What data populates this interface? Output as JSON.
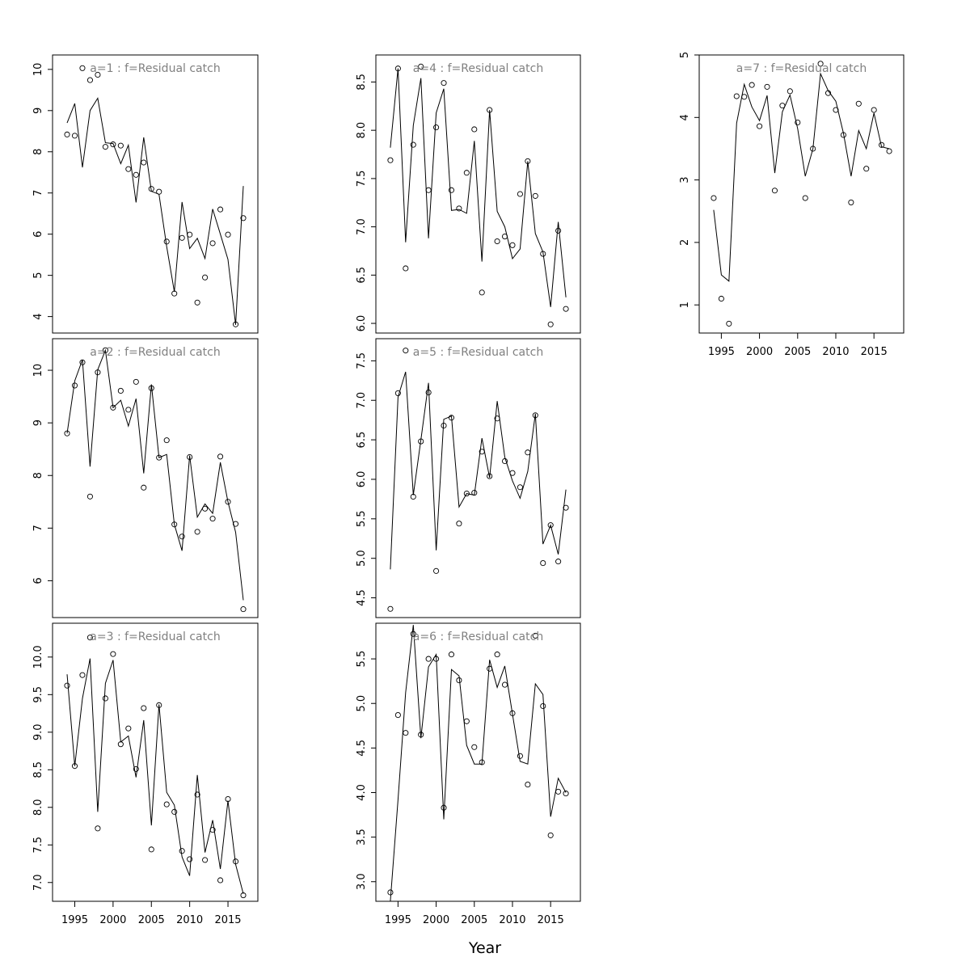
{
  "figure": {
    "xlabel": "Year"
  },
  "chart_data": [
    {
      "type": "line",
      "title": "a=1  :  f=Residual catch",
      "x": [
        1994,
        1995,
        1996,
        1997,
        1998,
        1999,
        2000,
        2001,
        2002,
        2003,
        2004,
        2005,
        2006,
        2007,
        2008,
        2009,
        2010,
        2011,
        2012,
        2013,
        2014,
        2015,
        2016,
        2017
      ],
      "observed": [
        8.42,
        8.39,
        10.03,
        9.74,
        9.87,
        8.12,
        8.18,
        8.15,
        7.58,
        7.44,
        7.74,
        7.1,
        7.03,
        5.82,
        4.56,
        5.91,
        5.99,
        4.34,
        4.95,
        5.78,
        6.6,
        5.99,
        3.81,
        6.39
      ],
      "fitted": [
        8.7,
        9.17,
        7.62,
        9.0,
        9.3,
        8.22,
        8.2,
        7.71,
        8.16,
        6.77,
        8.35,
        7.04,
        6.97,
        5.7,
        4.6,
        6.78,
        5.65,
        5.9,
        5.41,
        6.61,
        6.0,
        5.39,
        3.8,
        7.17
      ],
      "ylim": [
        3.6,
        10.35
      ],
      "yticks": [
        "4",
        "5",
        "6",
        "7",
        "8",
        "9",
        "10"
      ],
      "xticks": [],
      "xlim": [
        1992.1,
        2018.9
      ],
      "series": [
        {
          "values_key": "observed",
          "style": "points"
        },
        {
          "values_key": "fitted",
          "style": "line"
        }
      ]
    },
    {
      "type": "line",
      "title": "a=2  :  f=Residual catch",
      "x": [
        1994,
        1995,
        1996,
        1997,
        1998,
        1999,
        2000,
        2001,
        2002,
        2003,
        2004,
        2005,
        2006,
        2007,
        2008,
        2009,
        2010,
        2011,
        2012,
        2013,
        2014,
        2015,
        2016,
        2017
      ],
      "observed": [
        8.8,
        9.71,
        10.15,
        7.6,
        9.96,
        10.38,
        9.29,
        9.61,
        9.25,
        9.78,
        7.77,
        9.66,
        8.34,
        8.67,
        7.07,
        6.84,
        8.35,
        6.93,
        7.37,
        7.18,
        8.36,
        7.5,
        7.08,
        5.46
      ],
      "fitted": [
        8.8,
        9.8,
        10.2,
        8.17,
        10.01,
        10.38,
        9.29,
        9.43,
        8.94,
        9.46,
        8.04,
        9.73,
        8.34,
        8.4,
        7.07,
        6.57,
        8.38,
        7.21,
        7.46,
        7.28,
        8.25,
        7.5,
        6.92,
        5.63
      ],
      "ylim": [
        5.3,
        10.6
      ],
      "yticks": [
        "6",
        "7",
        "8",
        "9",
        "10"
      ],
      "xticks": [],
      "xlim": [
        1992.1,
        2018.9
      ]
    },
    {
      "type": "line",
      "title": "a=3  :  f=Residual catch",
      "x": [
        1994,
        1995,
        1996,
        1997,
        1998,
        1999,
        2000,
        2001,
        2002,
        2003,
        2004,
        2005,
        2006,
        2007,
        2008,
        2009,
        2010,
        2011,
        2012,
        2013,
        2014,
        2015,
        2016,
        2017
      ],
      "observed": [
        9.62,
        8.55,
        9.76,
        10.26,
        7.72,
        9.45,
        10.04,
        8.84,
        9.05,
        8.51,
        9.32,
        7.44,
        9.36,
        8.04,
        7.94,
        7.42,
        7.31,
        8.17,
        7.3,
        7.7,
        7.03,
        8.11,
        7.28,
        6.83
      ],
      "fitted": [
        9.77,
        8.55,
        9.45,
        9.98,
        7.94,
        9.65,
        9.96,
        8.87,
        8.95,
        8.4,
        9.16,
        7.76,
        9.37,
        8.2,
        8.03,
        7.34,
        7.09,
        8.43,
        7.4,
        7.83,
        7.18,
        8.09,
        7.24,
        6.85
      ],
      "ylim": [
        6.75,
        10.45
      ],
      "yticks": [
        "7.0",
        "7.5",
        "8.0",
        "8.5",
        "9.0",
        "9.5",
        "10.0"
      ],
      "xticks": [
        "1995",
        "2000",
        "2005",
        "2010",
        "2015"
      ],
      "xlim": [
        1992.1,
        2018.9
      ]
    },
    {
      "type": "line",
      "title": "a=4  :  f=Residual catch",
      "x": [
        1994,
        1995,
        1996,
        1997,
        1998,
        1999,
        2000,
        2001,
        2002,
        2003,
        2004,
        2005,
        2006,
        2007,
        2008,
        2009,
        2010,
        2011,
        2012,
        2013,
        2014,
        2015,
        2016,
        2017
      ],
      "observed": [
        7.69,
        8.64,
        6.57,
        7.85,
        8.66,
        7.38,
        8.03,
        8.49,
        7.38,
        7.19,
        7.56,
        8.01,
        6.32,
        8.21,
        6.85,
        6.9,
        6.81,
        7.34,
        7.68,
        7.32,
        6.72,
        5.99,
        6.96,
        6.15
      ],
      "fitted": [
        7.82,
        8.64,
        6.84,
        8.05,
        8.54,
        6.88,
        8.18,
        8.43,
        7.17,
        7.18,
        7.14,
        7.89,
        6.64,
        8.21,
        7.16,
        7.0,
        6.67,
        6.77,
        7.68,
        6.93,
        6.74,
        6.17,
        7.05,
        6.27
      ],
      "ylim": [
        5.9,
        8.78
      ],
      "yticks": [
        "6.0",
        "6.5",
        "7.0",
        "7.5",
        "8.0",
        "8.5"
      ],
      "xticks": [],
      "xlim": [
        1992.1,
        2018.9
      ]
    },
    {
      "type": "line",
      "title": "a=5  :  f=Residual catch",
      "x": [
        1994,
        1995,
        1996,
        1997,
        1998,
        1999,
        2000,
        2001,
        2002,
        2003,
        2004,
        2005,
        2006,
        2007,
        2008,
        2009,
        2010,
        2011,
        2012,
        2013,
        2014,
        2015,
        2016,
        2017
      ],
      "observed": [
        4.36,
        7.09,
        7.63,
        5.78,
        6.48,
        7.1,
        4.84,
        6.68,
        6.78,
        5.44,
        5.82,
        5.83,
        6.35,
        6.04,
        6.77,
        6.23,
        6.08,
        5.9,
        6.34,
        6.81,
        4.94,
        5.42,
        4.96,
        5.64
      ],
      "fitted": [
        4.86,
        7.04,
        7.36,
        5.8,
        6.5,
        7.22,
        5.1,
        6.76,
        6.8,
        5.65,
        5.82,
        5.8,
        6.52,
        6.02,
        6.99,
        6.28,
        5.98,
        5.76,
        6.1,
        6.83,
        5.18,
        5.42,
        5.05,
        5.87
      ],
      "ylim": [
        4.25,
        7.78
      ],
      "yticks": [
        "4.5",
        "5.0",
        "5.5",
        "6.0",
        "6.5",
        "7.0",
        "7.5"
      ],
      "xticks": [],
      "xlim": [
        1992.1,
        2018.9
      ]
    },
    {
      "type": "line",
      "title": "a=6  :  f=Residual catch",
      "x": [
        1994,
        1995,
        1996,
        1997,
        1998,
        1999,
        2000,
        2001,
        2002,
        2003,
        2004,
        2005,
        2006,
        2007,
        2008,
        2009,
        2010,
        2011,
        2012,
        2013,
        2014,
        2015,
        2016,
        2017
      ],
      "observed": [
        2.88,
        4.87,
        4.67,
        5.78,
        4.65,
        5.5,
        5.5,
        3.83,
        5.55,
        5.26,
        4.8,
        4.51,
        4.34,
        5.39,
        5.55,
        5.21,
        4.89,
        4.41,
        4.09,
        5.76,
        4.97,
        3.52,
        4.01,
        3.99
      ],
      "fitted": [
        2.78,
        3.92,
        5.12,
        5.88,
        4.61,
        5.41,
        5.55,
        3.7,
        5.38,
        5.31,
        4.53,
        4.32,
        4.32,
        5.49,
        5.18,
        5.42,
        4.88,
        4.35,
        4.32,
        5.22,
        5.1,
        3.73,
        4.16,
        4.0
      ],
      "ylim": [
        2.78,
        5.9
      ],
      "yticks": [
        "3.0",
        "3.5",
        "4.0",
        "4.5",
        "5.0",
        "5.5"
      ],
      "xticks": [
        "1995",
        "2000",
        "2005",
        "2010",
        "2015"
      ],
      "xlim": [
        1992.1,
        2018.9
      ]
    },
    {
      "type": "line",
      "title": "a=7  :  f=Residual catch",
      "x": [
        1994,
        1995,
        1996,
        1997,
        1998,
        1999,
        2000,
        2001,
        2002,
        2003,
        2004,
        2005,
        2006,
        2007,
        2008,
        2009,
        2010,
        2011,
        2012,
        2013,
        2014,
        2015,
        2016,
        2017
      ],
      "observed": [
        2.71,
        1.1,
        0.7,
        4.34,
        4.33,
        4.52,
        3.86,
        4.49,
        2.83,
        4.19,
        4.42,
        3.92,
        2.71,
        3.5,
        4.86,
        4.39,
        4.12,
        3.72,
        2.64,
        4.22,
        3.18,
        4.12,
        3.56,
        3.46
      ],
      "fitted": [
        2.52,
        1.48,
        1.38,
        3.91,
        4.53,
        4.17,
        3.95,
        4.35,
        3.11,
        4.09,
        4.36,
        3.82,
        3.06,
        3.5,
        4.7,
        4.43,
        4.26,
        3.75,
        3.06,
        3.79,
        3.5,
        4.07,
        3.53,
        3.5
      ],
      "ylim": [
        0.55,
        5.0
      ],
      "yticks": [
        "1",
        "2",
        "3",
        "4",
        "5"
      ],
      "xticks": [
        "1995",
        "2000",
        "2005",
        "2010",
        "2015"
      ],
      "xlim": [
        1992.1,
        2018.9
      ]
    }
  ]
}
